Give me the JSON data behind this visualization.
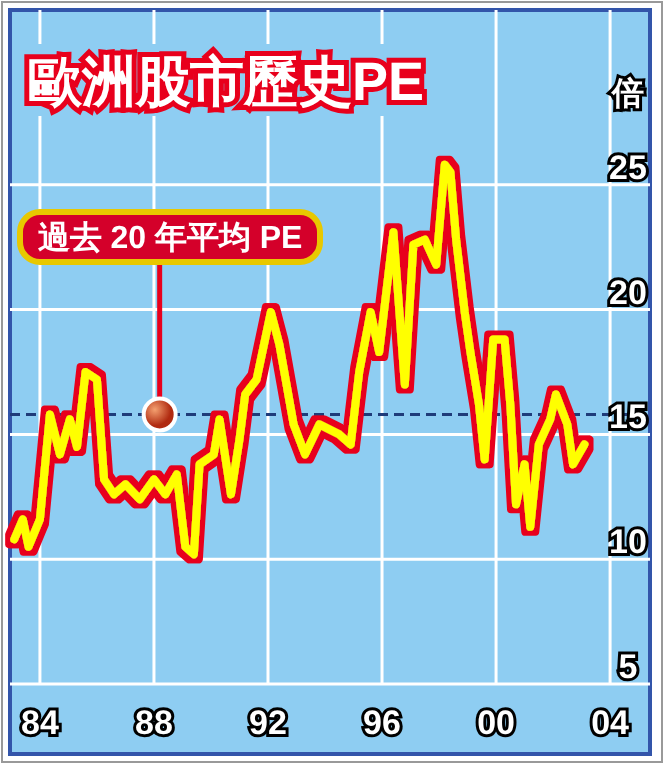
{
  "chart_data": {
    "type": "line",
    "title": "歐洲股市歷史PE",
    "ylabel": "倍",
    "x": [
      1983.1,
      1983.4,
      1983.6,
      1984.0,
      1984.35,
      1984.7,
      1985.05,
      1985.3,
      1985.6,
      1986.0,
      1986.25,
      1986.6,
      1987.0,
      1987.5,
      1988.0,
      1988.4,
      1988.8,
      1989.1,
      1989.4,
      1989.6,
      1990.1,
      1990.3,
      1990.7,
      1991.0,
      1991.2,
      1991.6,
      1992.1,
      1992.4,
      1992.9,
      1993.3,
      1993.8,
      1994.5,
      1994.9,
      1995.2,
      1995.6,
      1995.9,
      1996.4,
      1996.8,
      1997.1,
      1997.5,
      1997.9,
      1998.2,
      1998.4,
      1998.6,
      1998.9,
      1999.1,
      1999.4,
      1999.6,
      1999.9,
      2000.3,
      2000.5,
      2000.7,
      2001.0,
      2001.2,
      2001.5,
      2001.9,
      2002.1,
      2002.5,
      2002.7,
      2003.1
    ],
    "series": [
      {
        "color": "#ffff00",
        "values": [
          10.8,
          11.6,
          10.5,
          11.6,
          15.8,
          14.2,
          15.6,
          14.5,
          17.5,
          17.2,
          13.2,
          12.6,
          13.0,
          12.4,
          13.2,
          12.6,
          13.4,
          10.5,
          10.2,
          13.8,
          14.2,
          15.6,
          12.6,
          14.8,
          16.6,
          17.2,
          19.9,
          18.6,
          15.4,
          14.2,
          15.4,
          15.0,
          14.6,
          17.5,
          19.9,
          18.3,
          23.1,
          17.0,
          22.6,
          22.8,
          21.8,
          25.8,
          25.5,
          22.8,
          19.9,
          18.3,
          16.2,
          14.0,
          18.8,
          18.8,
          16.2,
          12.2,
          13.8,
          11.3,
          14.6,
          15.6,
          16.6,
          15.4,
          13.8,
          14.6
        ]
      }
    ],
    "xlim": [
      1982.95,
      2005.4
    ],
    "ylim": [
      2.2,
      32
    ],
    "xticks": [
      {
        "value": 1984,
        "label": "84"
      },
      {
        "value": 1988,
        "label": "88"
      },
      {
        "value": 1992,
        "label": "92"
      },
      {
        "value": 1996,
        "label": "96"
      },
      {
        "value": 2000,
        "label": "00"
      },
      {
        "value": 2004,
        "label": "04"
      }
    ],
    "yticks": [
      5,
      10,
      15,
      20,
      25
    ],
    "grid": true,
    "marker": "none",
    "line_style": "solid",
    "ref_lines": [
      {
        "axis": "y",
        "value": 15.8,
        "color": "#1f3c7a",
        "line_style": "dashed"
      }
    ],
    "annotations": [
      {
        "text": "過去 20 年平均 PE",
        "x": 1988.2,
        "y": 15.8
      }
    ]
  }
}
